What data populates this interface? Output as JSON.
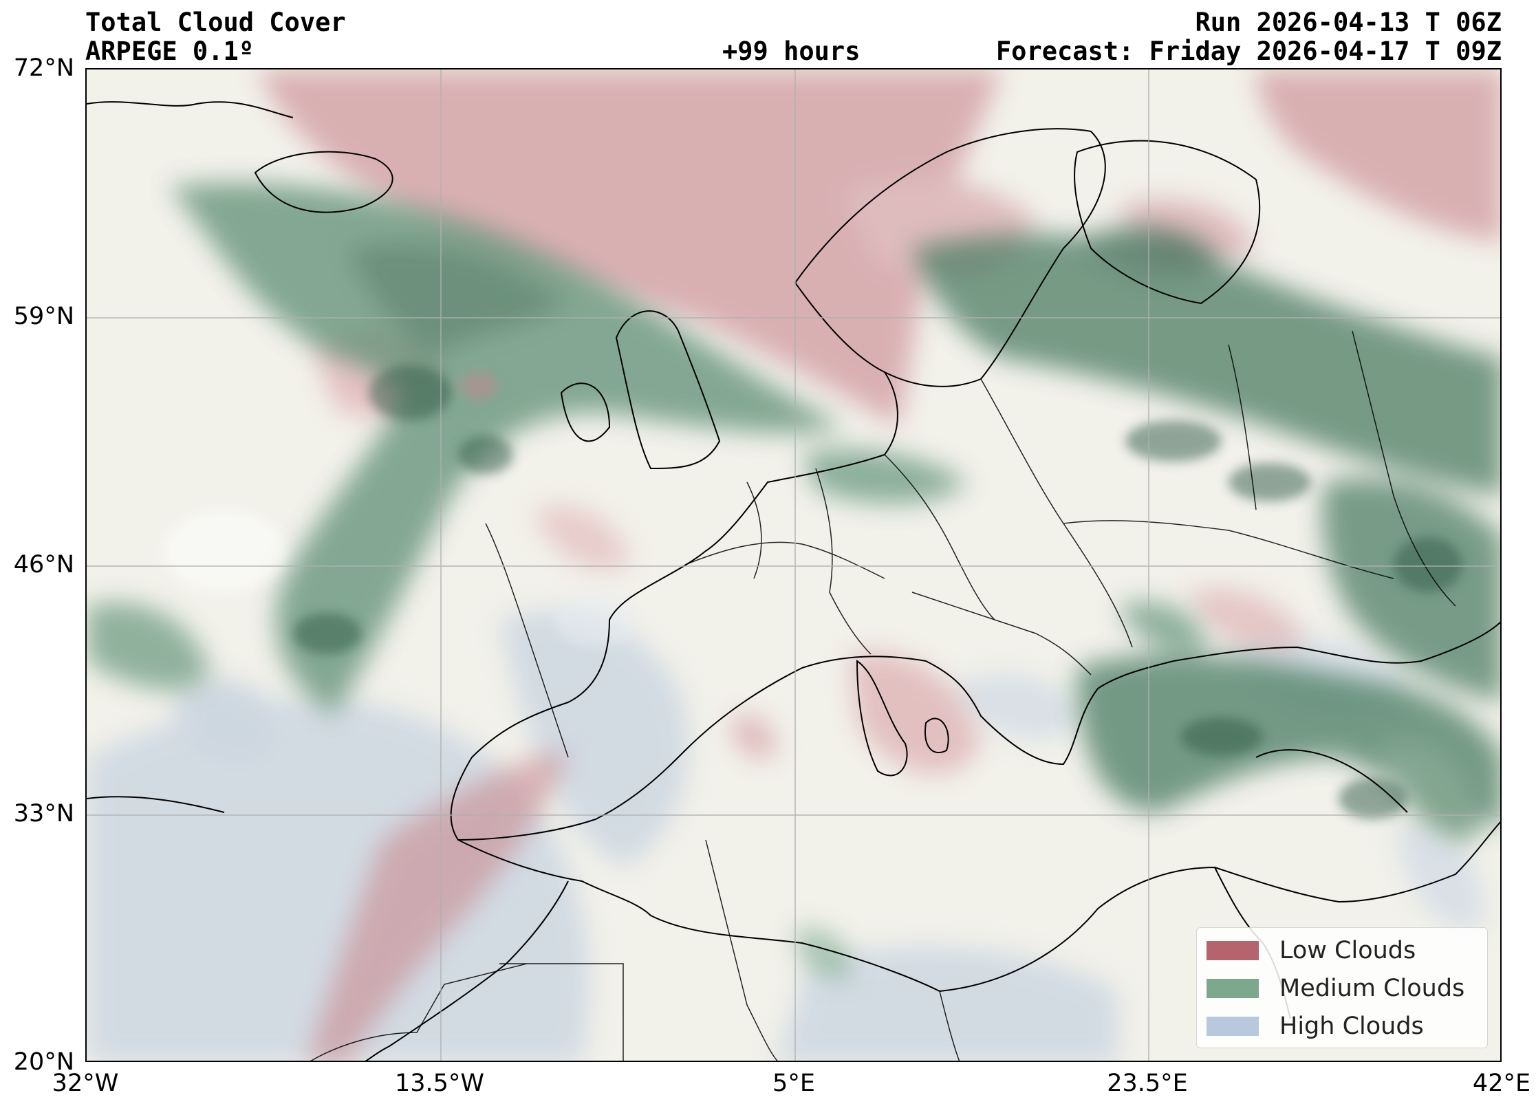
{
  "header": {
    "title_line1": "Total Cloud Cover",
    "title_line2": "ARPEGE 0.1º",
    "lead_time": "+99 hours",
    "run": "Run 2026-04-13 T 06Z",
    "forecast": "Forecast: Friday 2026-04-17 T 09Z"
  },
  "map": {
    "lat_ticks": [
      "72°N",
      "59°N",
      "46°N",
      "33°N",
      "20°N"
    ],
    "lon_ticks": [
      "32°W",
      "13.5°W",
      "5°E",
      "23.5°E",
      "42°E"
    ],
    "lat_range": [
      20,
      72
    ],
    "lon_range": [
      -32,
      42
    ],
    "gridlines": true,
    "background_color": "#f2f1ea"
  },
  "legend": {
    "placement": "bottom-right",
    "items": [
      {
        "label": "Low Clouds",
        "color": "#b5646e"
      },
      {
        "label": "Medium Clouds",
        "color": "#7ea88d"
      },
      {
        "label": "High Clouds",
        "color": "#b9c9dd"
      }
    ]
  }
}
